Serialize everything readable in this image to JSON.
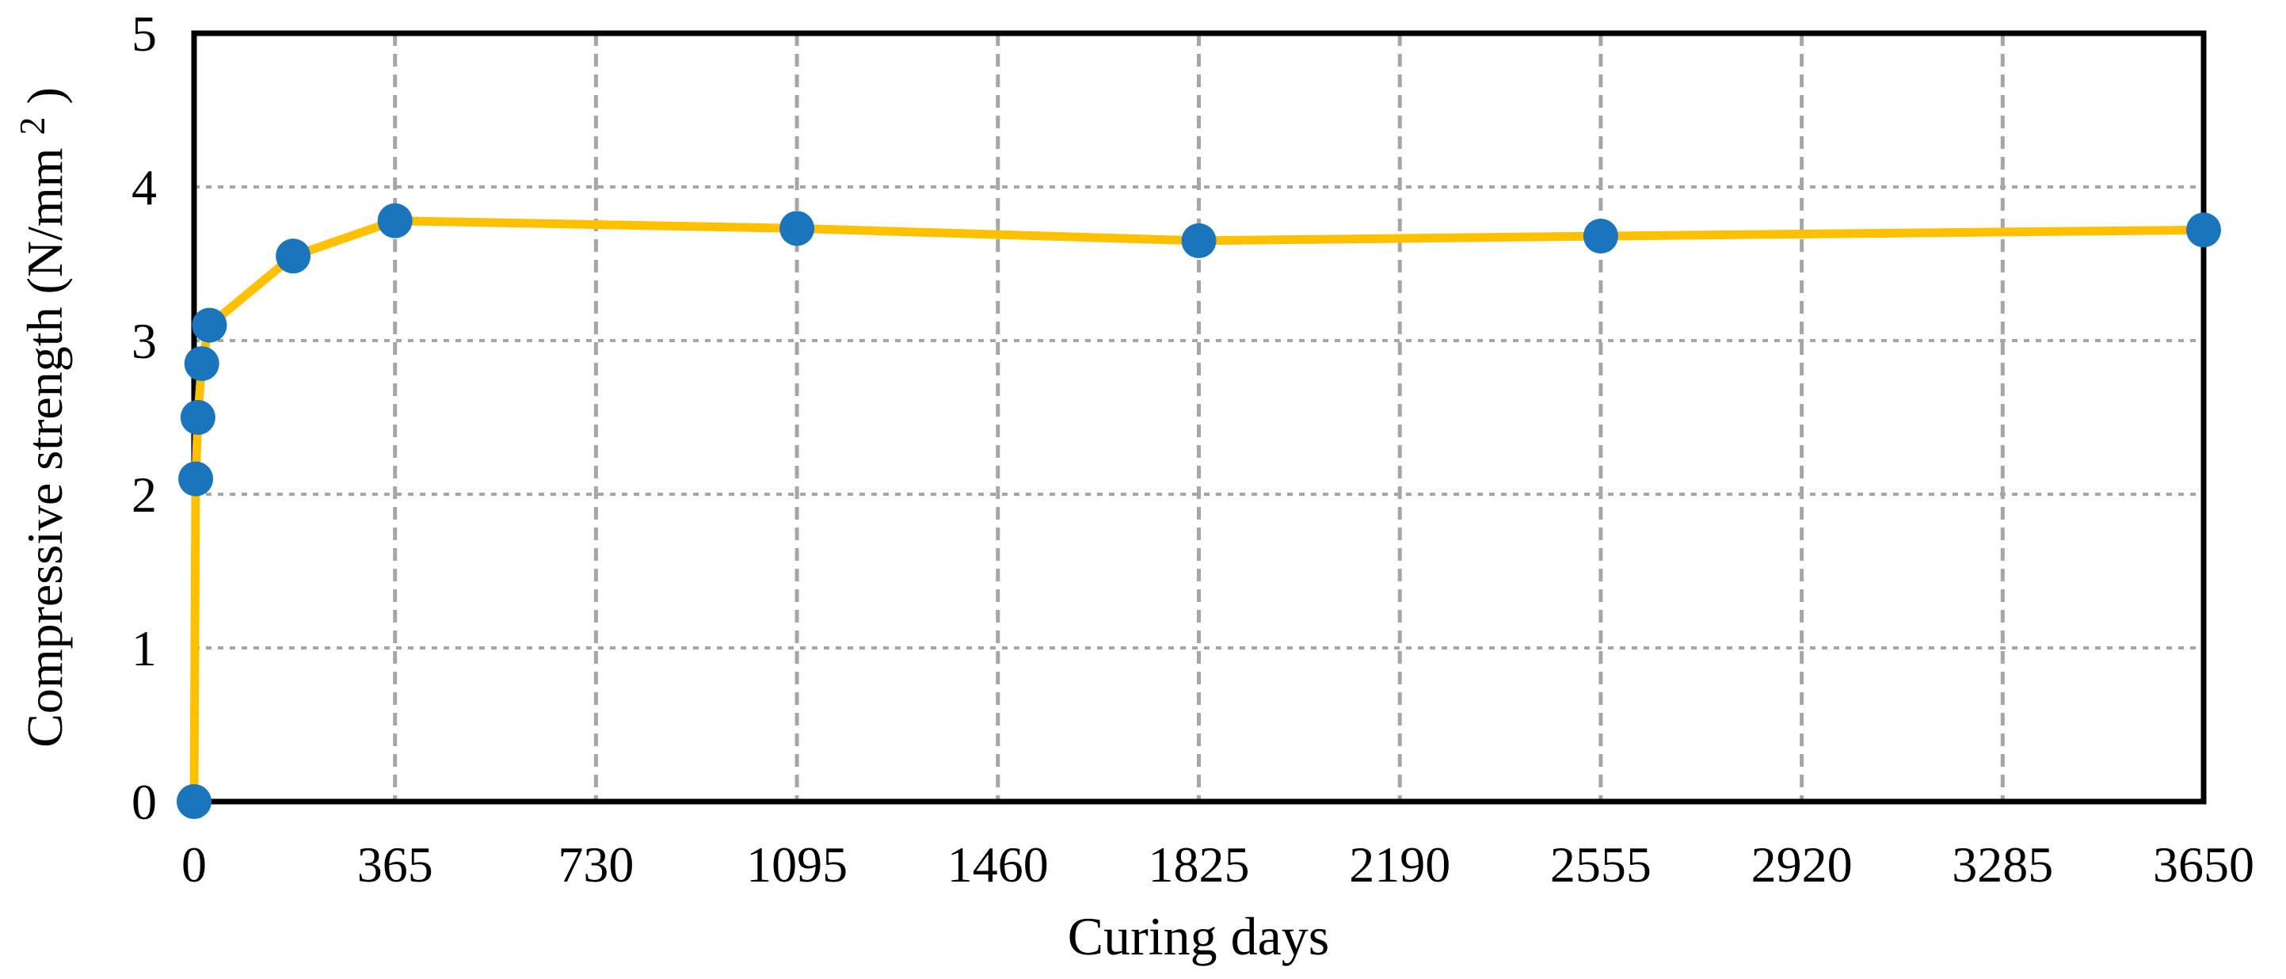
{
  "chart_data": {
    "type": "line",
    "title": "",
    "xlabel": "Curing days",
    "ylabel": "Compressive strength (N/mm²)",
    "ylabel_parts": {
      "prefix": "Compressive strength (N/mm",
      "superscript": "2",
      "suffix": ")"
    },
    "x": [
      0,
      3,
      7,
      14,
      28,
      180,
      365,
      1095,
      1825,
      2555,
      3650
    ],
    "y": [
      0,
      2.1,
      2.5,
      2.85,
      3.1,
      3.55,
      3.78,
      3.73,
      3.65,
      3.68,
      3.72
    ],
    "x_ticks": [
      "0",
      "365",
      "730",
      "1095",
      "1460",
      "1825",
      "2190",
      "2555",
      "2920",
      "3285",
      "3650"
    ],
    "y_ticks": [
      "0",
      "1",
      "2",
      "3",
      "4",
      "5"
    ],
    "xlim": [
      0,
      3650
    ],
    "ylim": [
      0,
      5
    ],
    "grid": true,
    "legend_position": "none",
    "line_color": "#FFC000",
    "marker_color": "#1B75BC",
    "gridline_color": "#A6A6A6",
    "axis_color": "#000000"
  }
}
